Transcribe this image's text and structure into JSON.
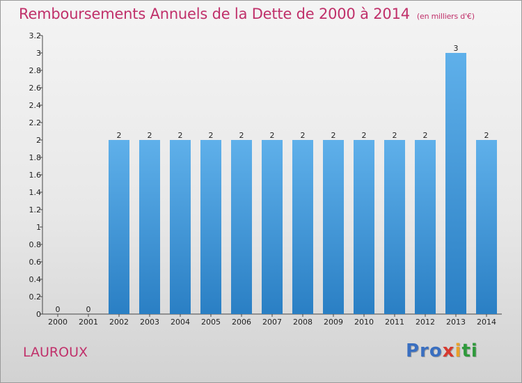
{
  "chart_data": {
    "type": "bar",
    "title": "Remboursements Annuels de la Dette de 2000 à 2014",
    "unit": "(en milliers d'€)",
    "categories": [
      "2000",
      "2001",
      "2002",
      "2003",
      "2004",
      "2005",
      "2006",
      "2007",
      "2008",
      "2009",
      "2010",
      "2011",
      "2012",
      "2013",
      "2014"
    ],
    "values": [
      0,
      0,
      2,
      2,
      2,
      2,
      2,
      2,
      2,
      2,
      2,
      2,
      2,
      3,
      2
    ],
    "data_labels": [
      "0",
      "0",
      "2",
      "2",
      "2",
      "2",
      "2",
      "2",
      "2",
      "2",
      "2",
      "2",
      "2",
      "3",
      "2"
    ],
    "yticks": [
      "0",
      "0.2",
      "0.4",
      "0.6",
      "0.8",
      "1",
      "1.2",
      "1.4",
      "1.6",
      "1.8",
      "2",
      "2.2",
      "2.4",
      "2.6",
      "2.8",
      "3",
      "3.2"
    ],
    "ylim": [
      0,
      3.2
    ],
    "xlabel": "",
    "ylabel": "",
    "bar_color": "#4f9fdd",
    "grid": false
  },
  "footer": {
    "commune": "LAUROUX",
    "logo": [
      "Pro",
      "x",
      "i",
      "ti"
    ]
  }
}
